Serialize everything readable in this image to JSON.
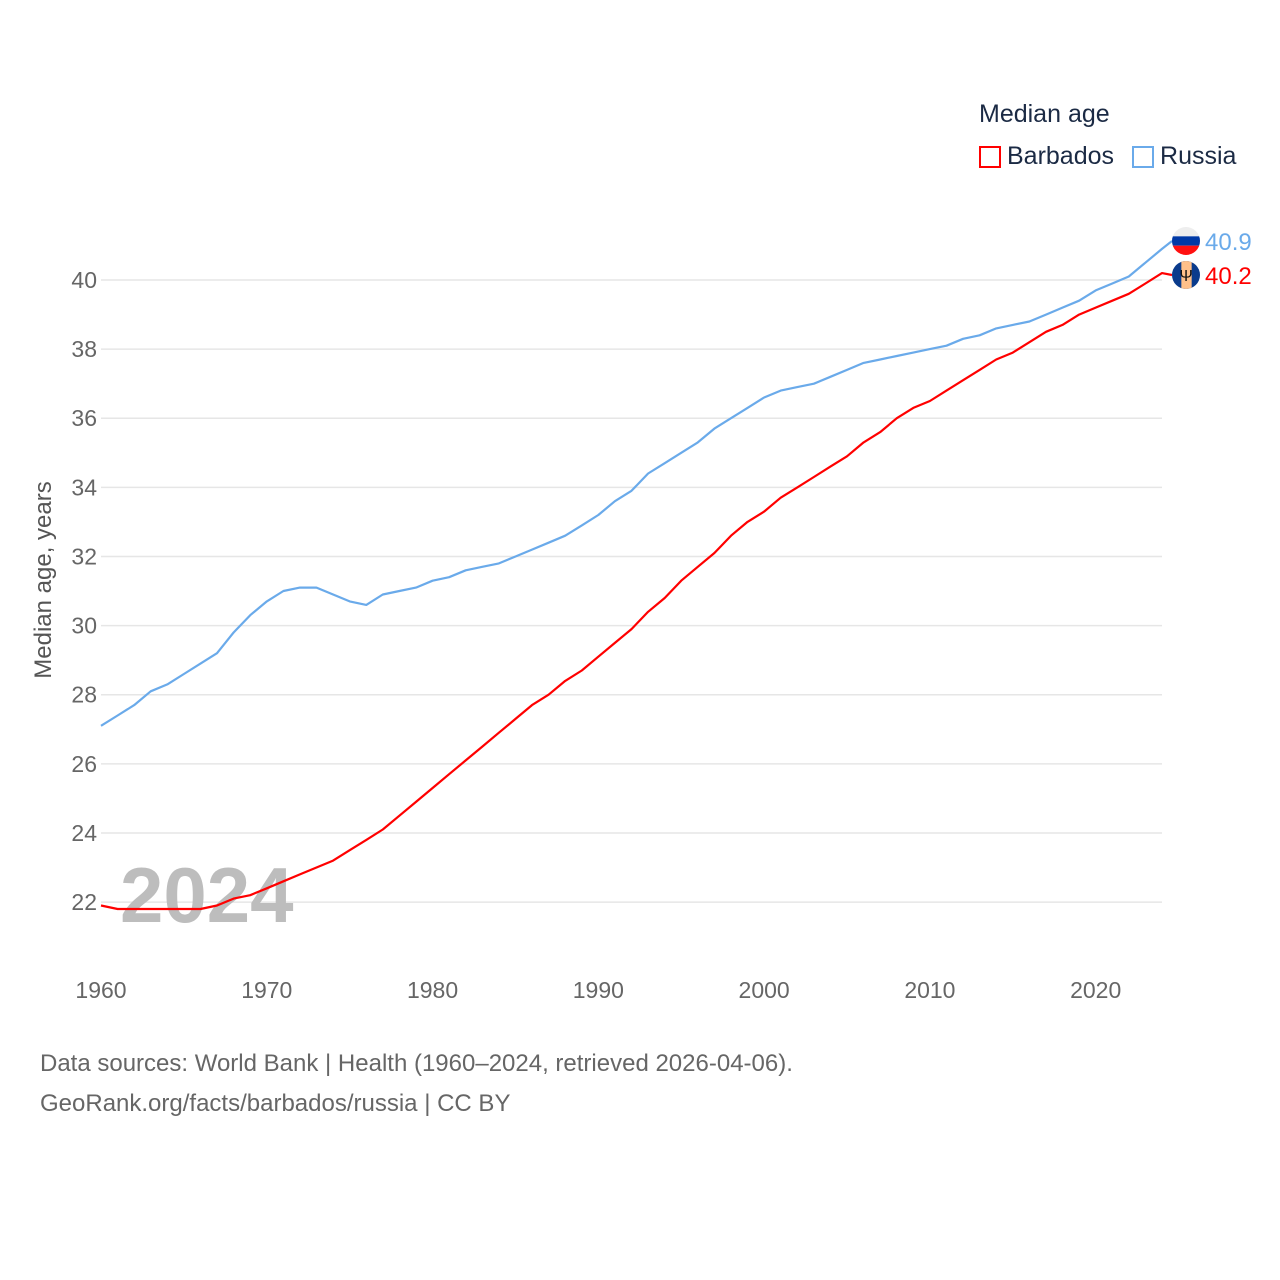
{
  "chart_data": {
    "type": "line",
    "title": "Median age",
    "xlabel": "",
    "ylabel": "Median age, years",
    "xlim": [
      1960,
      2024
    ],
    "ylim": [
      21,
      41.5
    ],
    "x_ticks": [
      1960,
      1970,
      1980,
      1990,
      2000,
      2010,
      2020
    ],
    "y_ticks": [
      22,
      24,
      26,
      28,
      30,
      32,
      34,
      36,
      38,
      40
    ],
    "grid": true,
    "legend_placement": "top-right",
    "watermark_year": "2024",
    "x": [
      1960,
      1961,
      1962,
      1963,
      1964,
      1965,
      1966,
      1967,
      1968,
      1969,
      1970,
      1971,
      1972,
      1973,
      1974,
      1975,
      1976,
      1977,
      1978,
      1979,
      1980,
      1981,
      1982,
      1983,
      1984,
      1985,
      1986,
      1987,
      1988,
      1989,
      1990,
      1991,
      1992,
      1993,
      1994,
      1995,
      1996,
      1997,
      1998,
      1999,
      2000,
      2001,
      2002,
      2003,
      2004,
      2005,
      2006,
      2007,
      2008,
      2009,
      2010,
      2011,
      2012,
      2013,
      2014,
      2015,
      2016,
      2017,
      2018,
      2019,
      2020,
      2021,
      2022,
      2023,
      2024
    ],
    "series": [
      {
        "name": "Barbados",
        "color": "#ff0000",
        "end_label": "40.2",
        "flag": "barbados-flag",
        "values": [
          21.9,
          21.8,
          21.8,
          21.8,
          21.8,
          21.8,
          21.8,
          21.9,
          22.1,
          22.2,
          22.4,
          22.6,
          22.8,
          23.0,
          23.2,
          23.5,
          23.8,
          24.1,
          24.5,
          24.9,
          25.3,
          25.7,
          26.1,
          26.5,
          26.9,
          27.3,
          27.7,
          28.0,
          28.4,
          28.7,
          29.1,
          29.5,
          29.9,
          30.4,
          30.8,
          31.3,
          31.7,
          32.1,
          32.6,
          33.0,
          33.3,
          33.7,
          34.0,
          34.3,
          34.6,
          34.9,
          35.3,
          35.6,
          36.0,
          36.3,
          36.5,
          36.8,
          37.1,
          37.4,
          37.7,
          37.9,
          38.2,
          38.5,
          38.7,
          39.0,
          39.2,
          39.4,
          39.6,
          39.9,
          40.2
        ]
      },
      {
        "name": "Russia",
        "color": "#6aaaea",
        "end_label": "40.9",
        "flag": "russia-flag",
        "values": [
          27.1,
          27.4,
          27.7,
          28.1,
          28.3,
          28.6,
          28.9,
          29.2,
          29.8,
          30.3,
          30.7,
          31.0,
          31.1,
          31.1,
          30.9,
          30.7,
          30.6,
          30.9,
          31.0,
          31.1,
          31.3,
          31.4,
          31.6,
          31.7,
          31.8,
          32.0,
          32.2,
          32.4,
          32.6,
          32.9,
          33.2,
          33.6,
          33.9,
          34.4,
          34.7,
          35.0,
          35.3,
          35.7,
          36.0,
          36.3,
          36.6,
          36.8,
          36.9,
          37.0,
          37.2,
          37.4,
          37.6,
          37.7,
          37.8,
          37.9,
          38.0,
          38.1,
          38.3,
          38.4,
          38.6,
          38.7,
          38.8,
          39.0,
          39.2,
          39.4,
          39.7,
          39.9,
          40.1,
          40.5,
          40.9
        ]
      }
    ]
  },
  "footer": {
    "line1": "Data sources: World Bank | Health (1960–2024, retrieved 2026-04-06).",
    "line2": "GeoRank.org/facts/barbados/russia | CC BY"
  }
}
